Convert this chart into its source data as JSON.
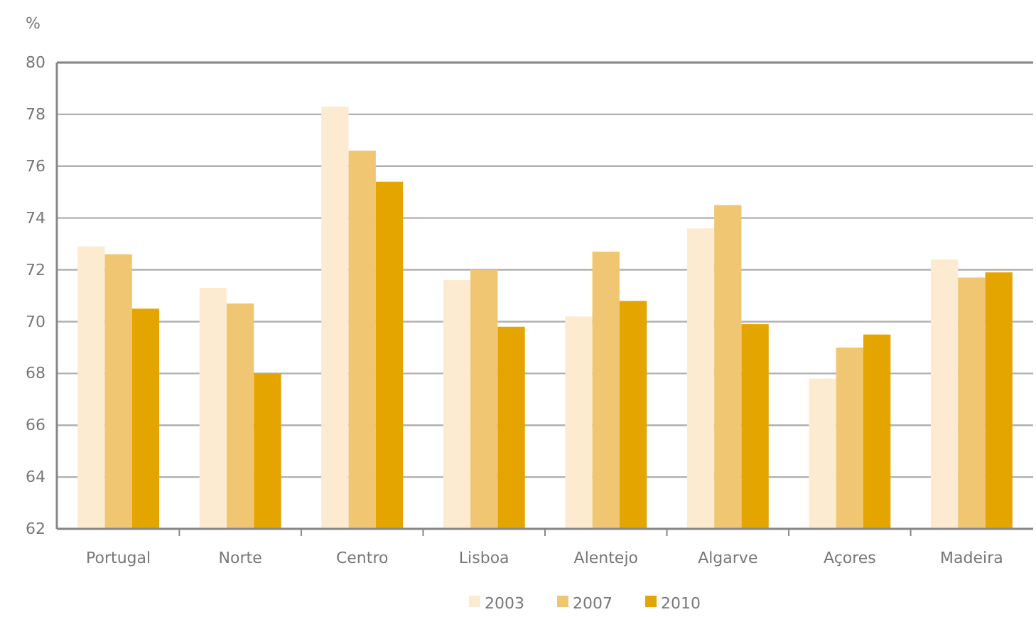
{
  "chart_data": {
    "type": "bar",
    "ylabel": "%",
    "categories": [
      "Portugal",
      "Norte",
      "Centro",
      "Lisboa",
      "Alentejo",
      "Algarve",
      "Açores",
      "Madeira"
    ],
    "series": [
      {
        "name": "2003",
        "color": "#fcebd0",
        "values": [
          72.9,
          71.3,
          78.3,
          71.6,
          70.2,
          73.6,
          67.8,
          72.4
        ]
      },
      {
        "name": "2007",
        "color": "#f0c672",
        "values": [
          72.6,
          70.7,
          76.6,
          72.0,
          72.7,
          74.5,
          69.0,
          71.7
        ]
      },
      {
        "name": "2010",
        "color": "#e5a500",
        "values": [
          70.5,
          68.0,
          75.4,
          69.8,
          70.8,
          69.9,
          69.5,
          71.9
        ]
      }
    ],
    "ylim": [
      62,
      80
    ],
    "yticks": [
      62,
      64,
      66,
      68,
      70,
      72,
      74,
      76,
      78,
      80
    ],
    "grid": "y",
    "legend": "bottom"
  }
}
